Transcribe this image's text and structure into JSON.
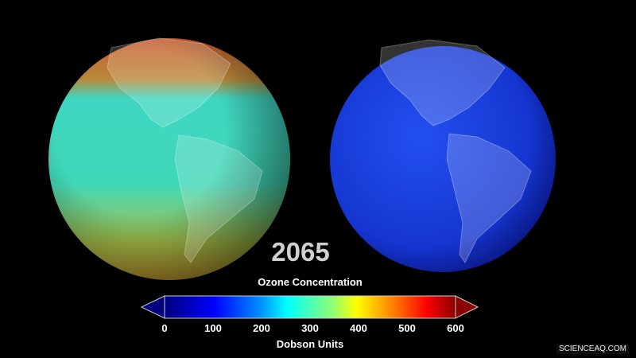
{
  "year": "2065",
  "colorbar": {
    "title": "Ozone Concentration",
    "unit_label": "Dobson Units",
    "ticks": [
      "0",
      "100",
      "200",
      "300",
      "400",
      "500",
      "600"
    ],
    "range": [
      0,
      600
    ],
    "colormap": [
      "#00007f",
      "#0000ff",
      "#0080ff",
      "#00ffff",
      "#80ff80",
      "#ffff00",
      "#ff8000",
      "#ff0000",
      "#7f0000"
    ]
  },
  "globes": [
    {
      "name": "left",
      "dominant_colors": [
        "#3fd9c0",
        "#c86a2a",
        "#b6a83a"
      ]
    },
    {
      "name": "right",
      "dominant_colors": [
        "#1a3fe0",
        "#0a1aa0"
      ]
    }
  ],
  "watermark": "SCIENCEAQ.COM"
}
